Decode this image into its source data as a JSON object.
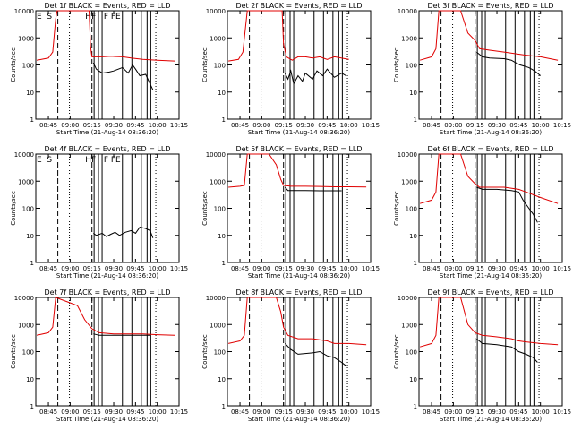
{
  "panels": [
    {
      "title": "Det 1f BLACK = Events, RED = LLD",
      "letters": "E  S             HF   F FE"
    },
    {
      "title": "Det 2f BLACK = Events, RED = LLD",
      "letters": ""
    },
    {
      "title": "Det 3f BLACK = Events, RED = LLD",
      "letters": ""
    },
    {
      "title": "Det 4f BLACK = Events, RED = LLD",
      "letters": "E  S             HF   F FE"
    },
    {
      "title": "Det 5f BLACK = Events, RED = LLD",
      "letters": ""
    },
    {
      "title": "Det 6f BLACK = Events, RED = LLD",
      "letters": ""
    },
    {
      "title": "Det 7f BLACK = Events, RED = LLD",
      "letters": ""
    },
    {
      "title": "Det 8f BLACK = Events, RED = LLD",
      "letters": ""
    },
    {
      "title": "Det 9f BLACK = Events, RED = LLD",
      "letters": ""
    }
  ],
  "ylabel": "Counts/sec",
  "xlabel": "Start Time (21-Aug-14 08:36:20)",
  "colors": {
    "events": "#000000",
    "lld": "#e00000"
  },
  "chart_data": {
    "type": "line",
    "yscale": "log",
    "ylim": [
      1,
      10000
    ],
    "y_ticks": [
      "1",
      "10",
      "100",
      "1000",
      "10000"
    ],
    "xlim": [
      "08:36:20",
      "10:15:00"
    ],
    "x_ticks": [
      "08:45",
      "09:00",
      "09:15",
      "09:30",
      "09:45",
      "10:00",
      "10:15"
    ],
    "dashed_lines": [
      "08:51:30",
      "09:15:00"
    ],
    "dotted_lines": [
      "08:59:30",
      "09:59:00"
    ],
    "solid_lines": [
      "09:16:30",
      "09:19:30",
      "09:22:00",
      "09:36:00",
      "09:42:30",
      "09:49:00",
      "09:53:00",
      "09:55:30"
    ],
    "panels": [
      {
        "lld": [
          [
            "08:37",
            "150"
          ],
          [
            "08:45",
            "180"
          ],
          [
            "08:48",
            "300"
          ],
          [
            "08:50",
            "5000"
          ],
          [
            "08:51",
            "10000"
          ],
          [
            "09:13",
            "10000"
          ],
          [
            "09:14",
            "500"
          ],
          [
            "09:15",
            "200"
          ],
          [
            "09:22",
            "200"
          ],
          [
            "09:28",
            "210"
          ],
          [
            "09:36",
            "200"
          ],
          [
            "09:42",
            "180"
          ],
          [
            "09:50",
            "160"
          ],
          [
            "10:00",
            "150"
          ],
          [
            "10:12",
            "140"
          ]
        ],
        "events": [
          [
            "09:16",
            "120"
          ],
          [
            "09:18",
            "70"
          ],
          [
            "09:22",
            "50"
          ],
          [
            "09:27",
            "55"
          ],
          [
            "09:30",
            "60"
          ],
          [
            "09:36",
            "80"
          ],
          [
            "09:40",
            "50"
          ],
          [
            "09:43",
            "100"
          ],
          [
            "09:45",
            "70"
          ],
          [
            "09:48",
            "40"
          ],
          [
            "09:52",
            "45"
          ],
          [
            "09:55",
            "20"
          ],
          [
            "09:57",
            "12"
          ]
        ]
      },
      {
        "lld": [
          [
            "08:37",
            "140"
          ],
          [
            "08:44",
            "160"
          ],
          [
            "08:47",
            "300"
          ],
          [
            "08:50",
            "10000"
          ],
          [
            "09:14",
            "10000"
          ],
          [
            "09:15",
            "600"
          ],
          [
            "09:17",
            "200"
          ],
          [
            "09:21",
            "150"
          ],
          [
            "09:25",
            "200"
          ],
          [
            "09:30",
            "200"
          ],
          [
            "09:35",
            "180"
          ],
          [
            "09:40",
            "200"
          ],
          [
            "09:45",
            "160"
          ],
          [
            "09:50",
            "200"
          ],
          [
            "10:00",
            "160"
          ]
        ],
        "events": [
          [
            "09:16",
            "50"
          ],
          [
            "09:18",
            "30"
          ],
          [
            "09:20",
            "60"
          ],
          [
            "09:22",
            "20"
          ],
          [
            "09:25",
            "40"
          ],
          [
            "09:28",
            "25"
          ],
          [
            "09:30",
            "50"
          ],
          [
            "09:35",
            "30"
          ],
          [
            "09:38",
            "60"
          ],
          [
            "09:42",
            "40"
          ],
          [
            "09:45",
            "70"
          ],
          [
            "09:50",
            "35"
          ],
          [
            "09:55",
            "50"
          ],
          [
            "09:58",
            "40"
          ]
        ]
      },
      {
        "lld": [
          [
            "08:37",
            "150"
          ],
          [
            "08:45",
            "200"
          ],
          [
            "08:48",
            "400"
          ],
          [
            "08:50",
            "10000"
          ],
          [
            "09:05",
            "10000"
          ],
          [
            "09:10",
            "1500"
          ],
          [
            "09:15",
            "800"
          ],
          [
            "09:18",
            "400"
          ],
          [
            "09:25",
            "350"
          ],
          [
            "09:35",
            "300"
          ],
          [
            "09:45",
            "250"
          ],
          [
            "09:50",
            "230"
          ],
          [
            "10:00",
            "200"
          ],
          [
            "10:12",
            "150"
          ]
        ],
        "events": [
          [
            "09:16",
            "300"
          ],
          [
            "09:20",
            "200"
          ],
          [
            "09:25",
            "180"
          ],
          [
            "09:35",
            "170"
          ],
          [
            "09:40",
            "150"
          ],
          [
            "09:43",
            "120"
          ],
          [
            "09:46",
            "100"
          ],
          [
            "09:49",
            "90"
          ],
          [
            "09:52",
            "80"
          ],
          [
            "09:56",
            "60"
          ],
          [
            "10:00",
            "40"
          ]
        ]
      },
      {
        "lld": [],
        "events": [
          [
            "09:16",
            "12"
          ],
          [
            "09:18",
            "10"
          ],
          [
            "09:22",
            "12"
          ],
          [
            "09:25",
            "9"
          ],
          [
            "09:28",
            "11"
          ],
          [
            "09:31",
            "13"
          ],
          [
            "09:34",
            "10"
          ],
          [
            "09:38",
            "13"
          ],
          [
            "09:42",
            "15"
          ],
          [
            "09:45",
            "12"
          ],
          [
            "09:48",
            "20"
          ],
          [
            "09:52",
            "18"
          ],
          [
            "09:55",
            "15"
          ],
          [
            "09:57",
            "8"
          ]
        ]
      },
      {
        "lld": [
          [
            "08:37",
            "600"
          ],
          [
            "08:45",
            "650"
          ],
          [
            "08:48",
            "700"
          ],
          [
            "08:50",
            "10000"
          ],
          [
            "09:05",
            "10000"
          ],
          [
            "09:10",
            "4000"
          ],
          [
            "09:13",
            "1200"
          ],
          [
            "09:15",
            "700"
          ],
          [
            "09:20",
            "650"
          ],
          [
            "09:30",
            "650"
          ],
          [
            "09:40",
            "640"
          ],
          [
            "09:50",
            "620"
          ],
          [
            "10:00",
            "620"
          ],
          [
            "10:12",
            "610"
          ]
        ],
        "events": [
          [
            "09:16",
            "600"
          ],
          [
            "09:18",
            "450"
          ],
          [
            "09:30",
            "450"
          ],
          [
            "09:40",
            "440"
          ],
          [
            "09:50",
            "440"
          ],
          [
            "09:55",
            "440"
          ]
        ]
      },
      {
        "lld": [
          [
            "08:37",
            "150"
          ],
          [
            "08:45",
            "200"
          ],
          [
            "08:48",
            "400"
          ],
          [
            "08:50",
            "10000"
          ],
          [
            "09:05",
            "10000"
          ],
          [
            "09:10",
            "1500"
          ],
          [
            "09:15",
            "800"
          ],
          [
            "09:18",
            "600"
          ],
          [
            "09:25",
            "600"
          ],
          [
            "09:35",
            "600"
          ],
          [
            "09:45",
            "500"
          ],
          [
            "09:50",
            "400"
          ],
          [
            "10:00",
            "250"
          ],
          [
            "10:12",
            "150"
          ]
        ],
        "events": [
          [
            "09:16",
            "600"
          ],
          [
            "09:20",
            "500"
          ],
          [
            "09:30",
            "500"
          ],
          [
            "09:40",
            "450"
          ],
          [
            "09:45",
            "400"
          ],
          [
            "09:48",
            "200"
          ],
          [
            "09:52",
            "100"
          ],
          [
            "09:55",
            "60"
          ],
          [
            "09:58",
            "30"
          ]
        ]
      },
      {
        "lld": [
          [
            "08:37",
            "400"
          ],
          [
            "08:45",
            "500"
          ],
          [
            "08:48",
            "800"
          ],
          [
            "08:50",
            "10000"
          ],
          [
            "09:05",
            "5000"
          ],
          [
            "09:10",
            "1500"
          ],
          [
            "09:15",
            "700"
          ],
          [
            "09:20",
            "500"
          ],
          [
            "09:30",
            "450"
          ],
          [
            "09:40",
            "450"
          ],
          [
            "09:50",
            "450"
          ],
          [
            "10:00",
            "420"
          ],
          [
            "10:12",
            "400"
          ]
        ],
        "events": [
          [
            "09:16",
            "450"
          ],
          [
            "09:20",
            "400"
          ],
          [
            "09:30",
            "400"
          ],
          [
            "09:40",
            "400"
          ],
          [
            "09:50",
            "400"
          ],
          [
            "09:55",
            "400"
          ]
        ]
      },
      {
        "lld": [
          [
            "08:37",
            "200"
          ],
          [
            "08:45",
            "250"
          ],
          [
            "08:48",
            "400"
          ],
          [
            "08:50",
            "10000"
          ],
          [
            "09:10",
            "10000"
          ],
          [
            "09:13",
            "3000"
          ],
          [
            "09:15",
            "800"
          ],
          [
            "09:18",
            "400"
          ],
          [
            "09:25",
            "300"
          ],
          [
            "09:35",
            "300"
          ],
          [
            "09:45",
            "250"
          ],
          [
            "09:50",
            "200"
          ],
          [
            "10:00",
            "200"
          ],
          [
            "10:12",
            "180"
          ]
        ],
        "events": [
          [
            "09:16",
            "200"
          ],
          [
            "09:20",
            "120"
          ],
          [
            "09:25",
            "80"
          ],
          [
            "09:35",
            "90"
          ],
          [
            "09:40",
            "100"
          ],
          [
            "09:45",
            "70"
          ],
          [
            "09:50",
            "60"
          ],
          [
            "09:55",
            "40"
          ],
          [
            "09:58",
            "30"
          ]
        ]
      },
      {
        "lld": [
          [
            "08:37",
            "150"
          ],
          [
            "08:45",
            "200"
          ],
          [
            "08:48",
            "400"
          ],
          [
            "08:50",
            "10000"
          ],
          [
            "09:05",
            "10000"
          ],
          [
            "09:10",
            "1000"
          ],
          [
            "09:15",
            "500"
          ],
          [
            "09:20",
            "400"
          ],
          [
            "09:30",
            "350"
          ],
          [
            "09:40",
            "300"
          ],
          [
            "09:45",
            "250"
          ],
          [
            "09:50",
            "230"
          ],
          [
            "10:00",
            "200"
          ],
          [
            "10:12",
            "180"
          ]
        ],
        "events": [
          [
            "09:16",
            "300"
          ],
          [
            "09:20",
            "200"
          ],
          [
            "09:30",
            "180"
          ],
          [
            "09:40",
            "150"
          ],
          [
            "09:45",
            "100"
          ],
          [
            "09:50",
            "80"
          ],
          [
            "09:55",
            "60"
          ],
          [
            "09:58",
            "40"
          ]
        ]
      }
    ]
  }
}
